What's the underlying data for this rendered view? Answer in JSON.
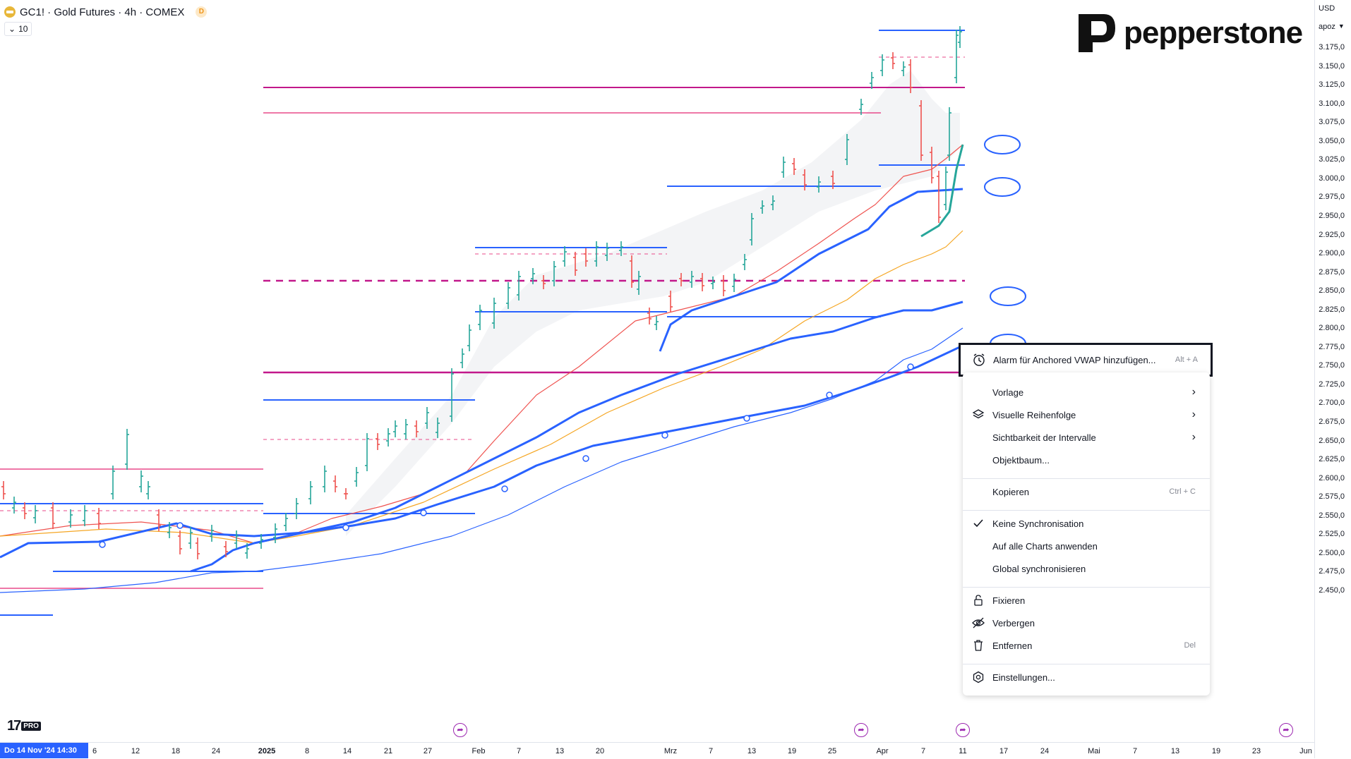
{
  "header": {
    "symbol": "GC1! · Gold Futures · 4h · COMEX",
    "badge": "D",
    "volume_value": "10"
  },
  "brand": {
    "name": "pepperstone"
  },
  "price_axis": {
    "currency": "USD",
    "mode": "apoz",
    "ticks": [
      "3.175,0",
      "3.150,0",
      "3.125,0",
      "3.100,0",
      "3.075,0",
      "3.050,0",
      "3.025,0",
      "3.000,0",
      "2.975,0",
      "2.950,0",
      "2.925,0",
      "2.900,0",
      "2.875,0",
      "2.850,0",
      "2.825,0",
      "2.800,0",
      "2.775,0",
      "2.750,0",
      "2.725,0",
      "2.700,0",
      "2.675,0",
      "2.650,0",
      "2.625,0",
      "2.600,0",
      "2.575,0",
      "2.550,0",
      "2.525,0",
      "2.500,0",
      "2.475,0",
      "2.450,0"
    ]
  },
  "time_axis": {
    "cursor_label": "Do 14 Nov '24   14:30",
    "ticks": [
      "6",
      "12",
      "18",
      "24",
      "2025",
      "8",
      "14",
      "21",
      "27",
      "Feb",
      "7",
      "13",
      "20",
      "Mrz",
      "7",
      "13",
      "19",
      "25",
      "Apr",
      "7",
      "11",
      "17",
      "24",
      "Mai",
      "7",
      "13",
      "19",
      "23",
      "Jun"
    ]
  },
  "tv_logo": {
    "text": "17",
    "pro": "PRO"
  },
  "context_menu": {
    "highlighted": {
      "label": "Alarm für Anchored VWAP hinzufügen...",
      "shortcut": "Alt + A"
    },
    "items": [
      {
        "label": "Vorlage",
        "submenu": true
      },
      {
        "label": "Visuelle Reihenfolge",
        "submenu": true,
        "icon": "layers-icon"
      },
      {
        "label": "Sichtbarkeit der Intervalle",
        "submenu": true
      },
      {
        "label": "Objektbaum..."
      },
      {
        "label": "Kopieren",
        "shortcut": "Ctrl + C"
      },
      {
        "label": "Keine Synchronisation",
        "checked": true
      },
      {
        "label": "Auf alle Charts anwenden"
      },
      {
        "label": "Global synchronisieren"
      },
      {
        "label": "Fixieren",
        "icon": "lock-icon"
      },
      {
        "label": "Verbergen",
        "icon": "eye-off-icon"
      },
      {
        "label": "Entfernen",
        "shortcut": "Del",
        "icon": "trash-icon"
      },
      {
        "label": "Einstellungen...",
        "icon": "settings-icon"
      }
    ]
  },
  "colors": {
    "up_bar": "#26a69a",
    "down_bar": "#ef5350",
    "vwap_blue": "#2962ff",
    "ma_red": "#ef5350",
    "ma_orange": "#f5a623",
    "level_magenta": "#c2188b",
    "level_pink": "#e84a8a",
    "level_blue": "#2962ff"
  }
}
